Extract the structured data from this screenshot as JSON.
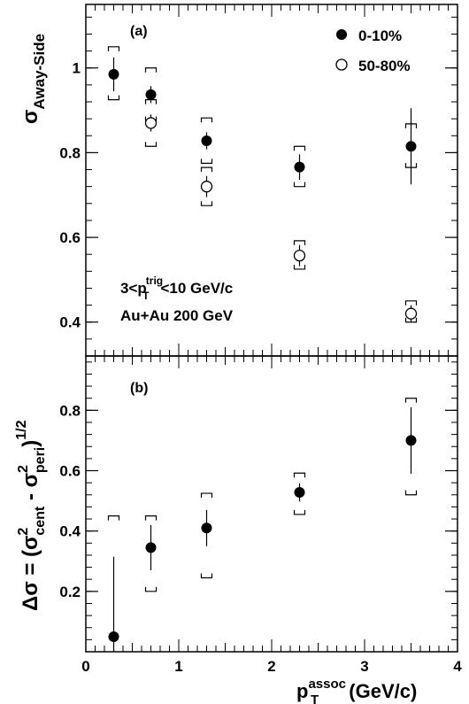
{
  "chart_data": [
    {
      "type": "scatter",
      "panel_label": "(a)",
      "ylabel": {
        "base": "σ",
        "sub": "Away-Side"
      },
      "ylim": [
        0.32,
        1.15
      ],
      "yticks": [
        {
          "value": 0.4,
          "label": "0.4"
        },
        {
          "value": 0.6,
          "label": "0.6"
        },
        {
          "value": 0.8,
          "label": "0.8"
        },
        {
          "value": 1.0,
          "label": "1"
        }
      ],
      "legend_position": "top-right",
      "annotations": {
        "pt_range": {
          "prefix": "3<p",
          "sup": "trig",
          "sub": "T",
          "suffix": "<10 GeV/c"
        },
        "system": "Au+Au 200 GeV"
      },
      "series": [
        {
          "name": "0-10%",
          "marker": "filled-circle",
          "points": [
            {
              "x": 0.3,
              "y": 0.985,
              "err": 0.04,
              "sys": [
                0.925,
                1.05
              ]
            },
            {
              "x": 0.7,
              "y": 0.937,
              "err": 0.02,
              "sys": [
                0.875,
                1.0
              ]
            },
            {
              "x": 1.3,
              "y": 0.828,
              "err": 0.02,
              "sys": [
                0.775,
                0.882
              ]
            },
            {
              "x": 2.3,
              "y": 0.766,
              "err": 0.03,
              "sys": [
                0.72,
                0.815
              ]
            },
            {
              "x": 3.5,
              "y": 0.815,
              "err": 0.09,
              "sys": [
                0.765,
                0.868
              ]
            }
          ]
        },
        {
          "name": "50-80%",
          "marker": "open-circle",
          "points": [
            {
              "x": 0.7,
              "y": 0.87,
              "err": 0.02,
              "sys": [
                0.815,
                0.925
              ]
            },
            {
              "x": 1.3,
              "y": 0.72,
              "err": 0.025,
              "sys": [
                0.675,
                0.765
              ]
            },
            {
              "x": 2.3,
              "y": 0.557,
              "err": 0.025,
              "sys": [
                0.525,
                0.592
              ]
            },
            {
              "x": 3.5,
              "y": 0.42,
              "err": 0.02,
              "sys": [
                0.4,
                0.45
              ]
            }
          ]
        }
      ]
    },
    {
      "type": "scatter",
      "panel_label": "(b)",
      "ylabel": {
        "parts": [
          "Δσ = (σ",
          "2",
          "cent",
          " - σ",
          "2",
          "peri",
          ")",
          "1/2"
        ]
      },
      "ylim": [
        0.0,
        0.98
      ],
      "yticks": [
        {
          "value": 0.2,
          "label": "0.2"
        },
        {
          "value": 0.4,
          "label": "0.4"
        },
        {
          "value": 0.6,
          "label": "0.6"
        },
        {
          "value": 0.8,
          "label": "0.8"
        }
      ],
      "xlabel": {
        "base": "p",
        "sup": "assoc",
        "sub": "T",
        "suffix": " (GeV/c)"
      },
      "xlim": [
        0,
        4
      ],
      "xticks": [
        {
          "value": 0,
          "label": "0"
        },
        {
          "value": 1,
          "label": "1"
        },
        {
          "value": 2,
          "label": "2"
        },
        {
          "value": 3,
          "label": "3"
        },
        {
          "value": 4,
          "label": "4"
        }
      ],
      "series": [
        {
          "marker": "filled-circle",
          "points": [
            {
              "x": 0.3,
              "y": 0.05,
              "err_low": 0.05,
              "err_high": 0.265,
              "sys": [
                null,
                0.45
              ]
            },
            {
              "x": 0.7,
              "y": 0.345,
              "err": 0.075,
              "sys": [
                0.2,
                0.45
              ]
            },
            {
              "x": 1.3,
              "y": 0.41,
              "err": 0.06,
              "sys": [
                0.245,
                0.525
              ]
            },
            {
              "x": 2.3,
              "y": 0.528,
              "err": 0.03,
              "sys": [
                0.455,
                0.592
              ]
            },
            {
              "x": 3.5,
              "y": 0.7,
              "err": 0.11,
              "sys": [
                0.52,
                0.84
              ]
            }
          ]
        }
      ]
    }
  ]
}
